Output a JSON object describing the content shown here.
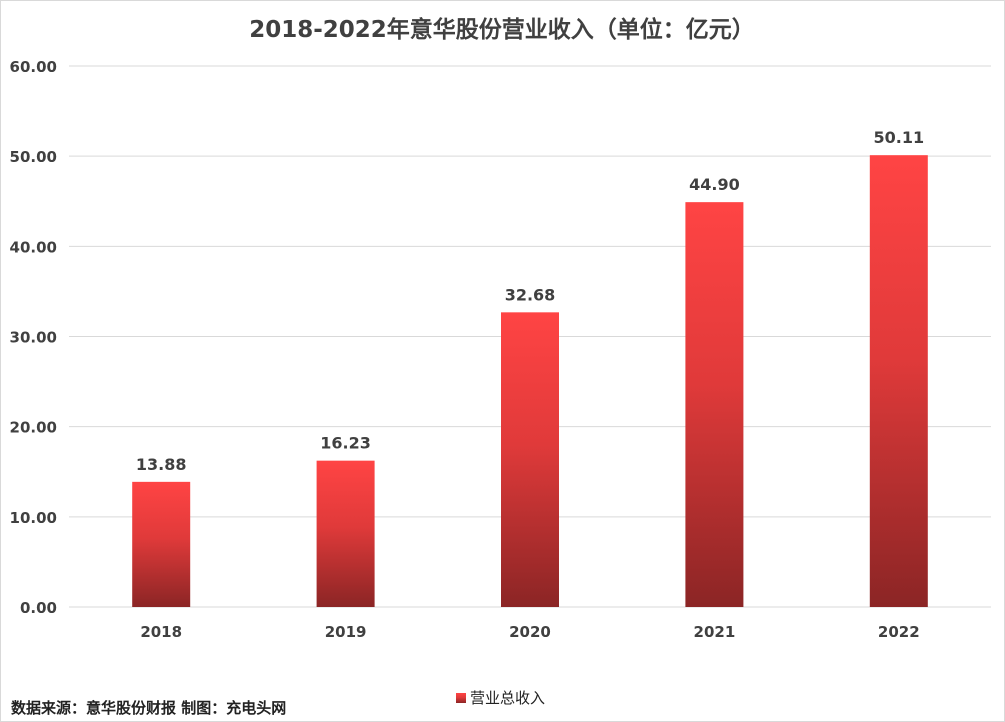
{
  "chart_data": {
    "type": "bar",
    "title": "2018-2022年意华股份营业收入（单位：亿元）",
    "categories": [
      "2018",
      "2019",
      "2020",
      "2021",
      "2022"
    ],
    "series": [
      {
        "name": "营业总收入",
        "values": [
          13.88,
          16.23,
          32.68,
          44.9,
          50.11
        ],
        "data_labels": [
          "13.88",
          "16.23",
          "32.68",
          "44.90",
          "50.11"
        ]
      }
    ],
    "ylim": [
      0,
      60
    ],
    "yticks": [
      "0.00",
      "10.00",
      "20.00",
      "30.00",
      "40.00",
      "50.00",
      "60.00"
    ],
    "xlabel": "",
    "ylabel": "",
    "grid": true,
    "legend": "bottom-center"
  },
  "colors": {
    "bar_top": "#ff4444",
    "bar_bottom": "#8b2525",
    "grid": "#d9d9d9",
    "text": "#404040"
  },
  "footer": {
    "source": "数据来源：意华股份财报  制图：充电头网"
  }
}
